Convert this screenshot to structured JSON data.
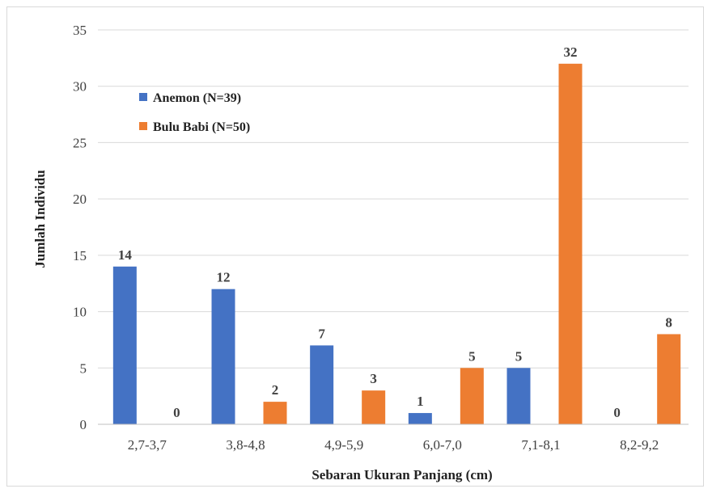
{
  "chart_data": {
    "type": "bar",
    "categories": [
      "2,7-3,7",
      "3,8-4,8",
      "4,9-5,9",
      "6,0-7,0",
      "7,1-8,1",
      "8,2-9,2"
    ],
    "series": [
      {
        "name": "Anemon (N=39)",
        "values": [
          14,
          12,
          7,
          1,
          5,
          0
        ],
        "color": "#4472C4"
      },
      {
        "name": "Bulu Babi (N=50)",
        "values": [
          0,
          2,
          3,
          5,
          32,
          8
        ],
        "color": "#ED7D31"
      }
    ],
    "xlabel": "Sebaran Ukuran Panjang (cm)",
    "ylabel": "Jumlah Individu",
    "ylim": [
      0,
      35
    ],
    "yticks": [
      0,
      5,
      10,
      15,
      20,
      25,
      30,
      35
    ],
    "grid": true,
    "legend_position": "top-left"
  }
}
